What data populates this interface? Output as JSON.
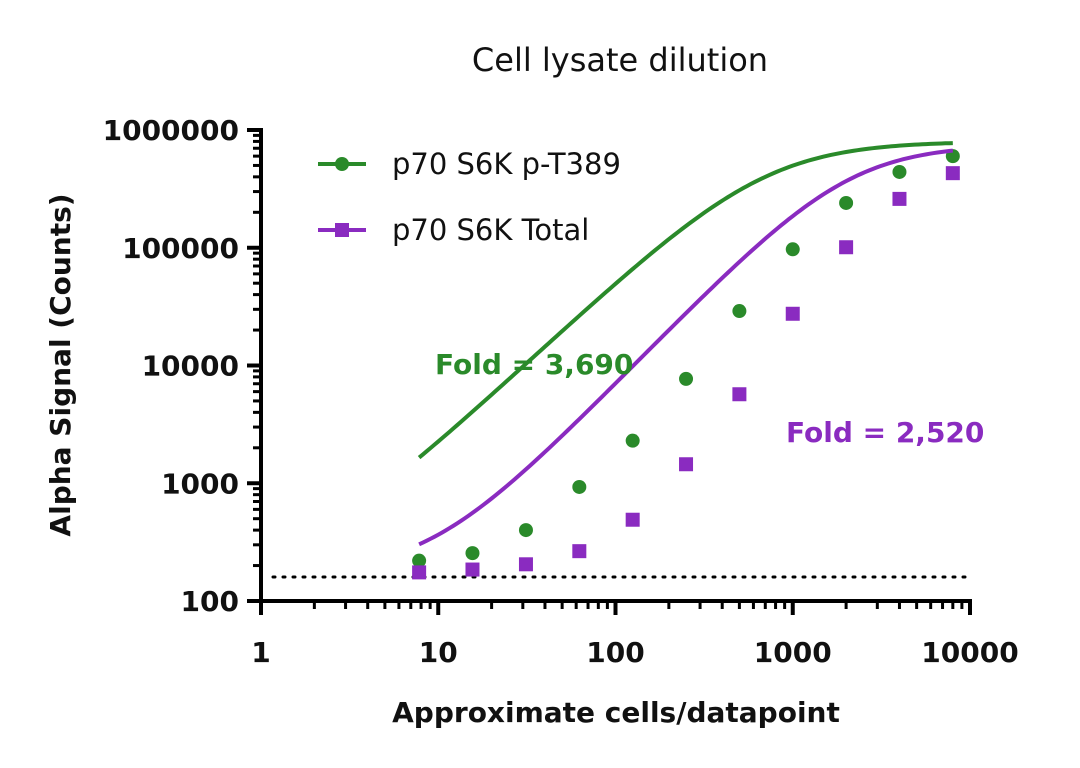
{
  "chart_data": {
    "type": "line",
    "title": "Cell lysate dilution",
    "xlabel": "Approximate cells/datapoint",
    "ylabel": "Alpha Signal (Counts)",
    "x_scale": "log",
    "y_scale": "log",
    "xlim": [
      1,
      10000
    ],
    "ylim": [
      100,
      1000000
    ],
    "x_tick_labels": [
      "1",
      "10",
      "100",
      "1000",
      "10000"
    ],
    "x_tick_values": [
      1,
      10,
      100,
      1000,
      10000
    ],
    "y_tick_labels": [
      "100",
      "1000",
      "10000",
      "100000",
      "1000000"
    ],
    "y_tick_values": [
      100,
      1000,
      10000,
      100000,
      1000000
    ],
    "background_level": 160,
    "legend_position": "top-left",
    "grid": false,
    "series": [
      {
        "name": "p70 S6K p-T389",
        "color": "#2a8a2a",
        "marker": "circle",
        "x": [
          7.8,
          15.6,
          31.25,
          62.5,
          125,
          250,
          500,
          1000,
          2000,
          4000,
          8000
        ],
        "y": [
          220,
          255,
          400,
          930,
          2300,
          7700,
          29000,
          97000,
          240000,
          440000,
          600000
        ],
        "curve": {
          "bottom": 180,
          "top": 800000,
          "ec50": 700,
          "hill": 1.4
        }
      },
      {
        "name": "p70 S6K Total",
        "color": "#8a2bc0",
        "marker": "square",
        "x": [
          7.8,
          15.6,
          31.25,
          62.5,
          125,
          250,
          500,
          1000,
          2000,
          4000,
          8000
        ],
        "y": [
          175,
          185,
          205,
          265,
          490,
          1450,
          5700,
          27500,
          101000,
          260000,
          430000
        ],
        "curve": {
          "bottom": 170,
          "top": 750000,
          "ec50": 2050,
          "hill": 1.55
        }
      }
    ],
    "annotations": [
      {
        "text": "Fold = 3,690",
        "color": "#2a8a2a"
      },
      {
        "text": "Fold = 2,520",
        "color": "#8a2bc0"
      }
    ]
  }
}
